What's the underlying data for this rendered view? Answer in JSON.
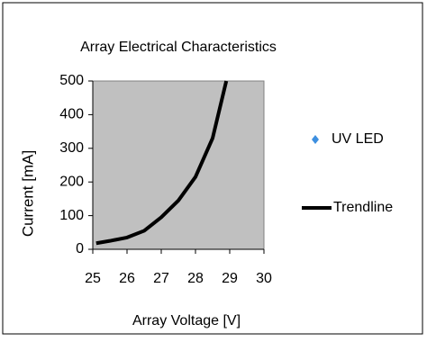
{
  "chart_data": {
    "type": "line",
    "title": "Array Electrical Characteristics",
    "x_label": "Array Voltage [V]",
    "y_label": "Current [mA]",
    "series": [
      {
        "name": "UV LED",
        "color": "#3d8fe0",
        "marker": "diamond",
        "x": [],
        "values": []
      },
      {
        "name": "Trendline",
        "color": "#000000",
        "x": [
          25.1,
          25.5,
          26,
          26.5,
          27,
          27.5,
          28,
          28.5,
          28.9
        ],
        "values": [
          18,
          25,
          35,
          55,
          95,
          145,
          215,
          330,
          500
        ]
      }
    ],
    "xlim": [
      25,
      30
    ],
    "xticks": [
      25,
      26,
      27,
      28,
      29,
      30
    ],
    "ylim": [
      0,
      500
    ],
    "yticks": [
      0,
      100,
      200,
      300,
      400,
      500
    ],
    "legend": "right",
    "plot_background": "#c0c0c0"
  }
}
